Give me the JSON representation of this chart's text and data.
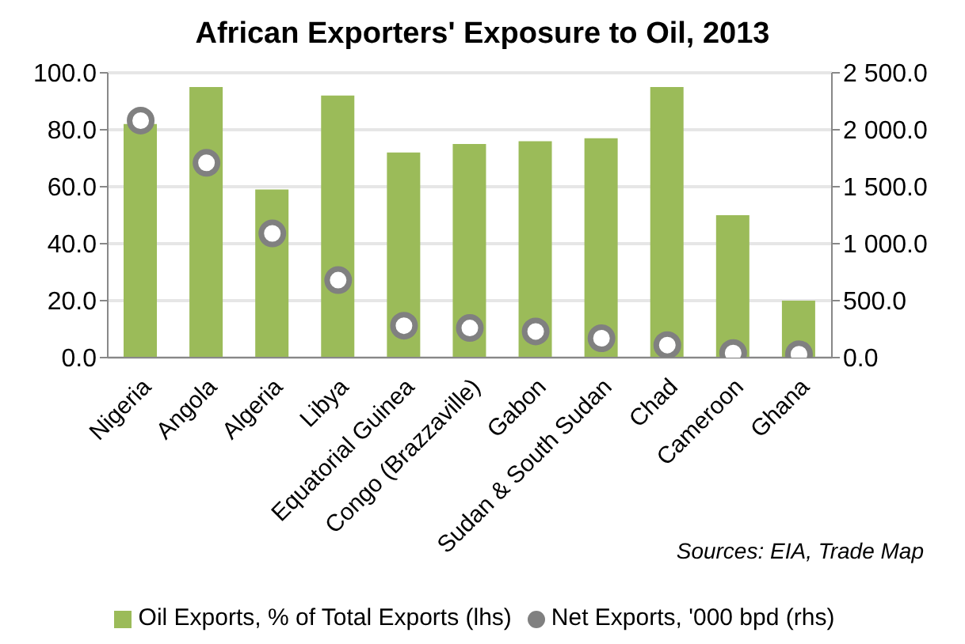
{
  "chart_data": {
    "type": "bar",
    "title": "African Exporters' Exposure to Oil, 2013",
    "categories": [
      "Nigeria",
      "Angola",
      "Algeria",
      "Libya",
      "Equatorial Guinea",
      "Congo (Brazzaville)",
      "Gabon",
      "Sudan & South Sudan",
      "Chad",
      "Cameroon",
      "Ghana"
    ],
    "series": [
      {
        "name": "Oil Exports, % of Total Exports (lhs)",
        "color": "#9bbb59",
        "values": [
          82,
          95,
          59,
          92,
          72,
          75,
          76,
          77,
          95,
          50,
          20
        ]
      },
      {
        "name": "Net Exports, '000 bpd (rhs)",
        "type": "scatter",
        "axis": "y2",
        "color": "#808080",
        "values": [
          2080,
          1710,
          1090,
          680,
          280,
          260,
          230,
          170,
          110,
          40,
          30
        ]
      }
    ],
    "ylim": [
      0,
      100
    ],
    "yticks": [
      {
        "value": 0,
        "label": "0.0"
      },
      {
        "value": 20,
        "label": "20.0"
      },
      {
        "value": 40,
        "label": "40.0"
      },
      {
        "value": 60,
        "label": "60.0"
      },
      {
        "value": 80,
        "label": "80.0"
      },
      {
        "value": 100,
        "label": "100.0"
      }
    ],
    "y2lim": [
      0,
      2500
    ],
    "y2ticks": [
      {
        "value": 0,
        "label": "0.0"
      },
      {
        "value": 500,
        "label": "500.0"
      },
      {
        "value": 1000,
        "label": "1 000.0"
      },
      {
        "value": 1500,
        "label": "1 500.0"
      },
      {
        "value": 2000,
        "label": "2 000.0"
      },
      {
        "value": 2500,
        "label": "2 500.0"
      }
    ],
    "grid": "y",
    "legend": "bottom",
    "marker": "circle",
    "annotations": [
      "Sources: EIA, Trade Map"
    ]
  }
}
